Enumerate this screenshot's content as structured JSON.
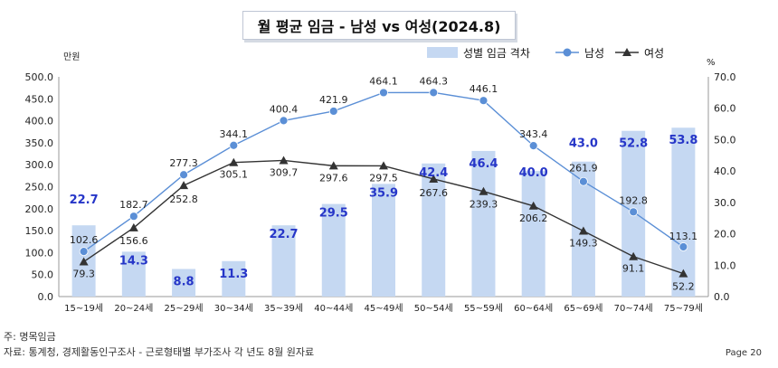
{
  "chart_data": {
    "type": "bar",
    "title": "월 평균 임금  - 남성 vs 여성(2024.8)",
    "y_left_unit": "만원",
    "y_right_unit": "%",
    "ylim_left": [
      0,
      500
    ],
    "ylim_right": [
      0,
      70
    ],
    "y_left_ticks": [
      "0.0",
      "50.0",
      "100.0",
      "150.0",
      "200.0",
      "250.0",
      "300.0",
      "350.0",
      "400.0",
      "450.0",
      "500.0"
    ],
    "y_right_ticks": [
      "0.0",
      "10.0",
      "20.0",
      "30.0",
      "40.0",
      "50.0",
      "60.0",
      "70.0"
    ],
    "categories": [
      "15~19세",
      "20~24세",
      "25~29세",
      "30~34세",
      "35~39세",
      "40~44세",
      "45~49세",
      "50~54세",
      "55~59세",
      "60~64세",
      "65~69세",
      "70~74세",
      "75~79세"
    ],
    "series": [
      {
        "name": "성별 임금 격차",
        "type": "bar",
        "axis": "right",
        "color": "#c5d8f2",
        "label_color": "#2636c8",
        "values": [
          22.7,
          14.3,
          8.8,
          11.3,
          22.7,
          29.5,
          35.9,
          42.4,
          46.4,
          40.0,
          43.0,
          52.8,
          53.8
        ],
        "labels": [
          "22.7",
          "14.3",
          "8.8",
          "11.3",
          "22.7",
          "29.5",
          "35.9",
          "42.4",
          "46.4",
          "40.0",
          "43.0",
          "52.8",
          "53.8"
        ]
      },
      {
        "name": "남성",
        "type": "line",
        "axis": "left",
        "marker": "circle",
        "color": "#5b8fd6",
        "values": [
          102.6,
          182.7,
          277.3,
          344.1,
          400.4,
          421.9,
          464.1,
          464.3,
          446.1,
          343.4,
          261.9,
          192.8,
          113.1
        ],
        "labels": [
          "102.6",
          "182.7",
          "277.3",
          "344.1",
          "400.4",
          "421.9",
          "464.1",
          "464.3",
          "446.1",
          "343.4",
          "261.9",
          "192.8",
          "113.1"
        ]
      },
      {
        "name": "여성",
        "type": "line",
        "axis": "left",
        "marker": "triangle",
        "color": "#333333",
        "values": [
          79.3,
          156.6,
          252.8,
          305.1,
          309.7,
          297.6,
          297.5,
          267.6,
          239.3,
          206.2,
          149.3,
          91.1,
          52.2
        ],
        "labels": [
          "79.3",
          "156.6",
          "252.8",
          "305.1",
          "309.7",
          "297.6",
          "297.5",
          "267.6",
          "239.3",
          "206.2",
          "149.3",
          "91.1",
          "52.2"
        ]
      }
    ],
    "legend_position": "top-right",
    "grid": false
  },
  "footer": {
    "note": "주: 명목임금",
    "source": "자료: 통계청, 경제활동인구조사 - 근로형태별 부가조사 각 년도 8월 원자료",
    "page": "Page  20"
  }
}
